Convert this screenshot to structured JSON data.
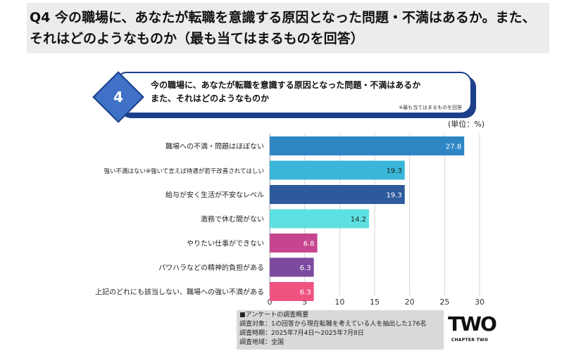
{
  "page_title": "Q4 今の職場に、あなたが転職を意識する原因となった問題・不満はあるか。また、それはどのようなものか（最も当てはまるものを回答）",
  "question_box": {
    "number": "4",
    "line1": "今の職場に、あなたが転職を意識する原因となった問題・不満はあるか",
    "line2": "また、それはどのようなものか",
    "note": "※最も当てはまるものを回答"
  },
  "unit_label": "(単位：%)",
  "chart_data": {
    "type": "bar",
    "orientation": "horizontal",
    "categories": [
      "職場への不満・問題はほぼない",
      "強い不満はない※強いて言えば待遇が若干改善されてほしい",
      "給与が安く生活が不安なレベル",
      "激務で休む間がない",
      "やりたい仕事ができない",
      "パワハラなどの精神的負担がある",
      "上記のどれにも該当しない、職場への強い不満がある"
    ],
    "values": [
      27.8,
      19.3,
      19.3,
      14.2,
      6.8,
      6.3,
      6.3
    ],
    "value_labels": [
      "27.8",
      "19.3",
      "19.3",
      "14.2",
      "6.8",
      "6.3",
      "6.3"
    ],
    "bar_colors": [
      "#2f86c4",
      "#39b6d8",
      "#2d5a9b",
      "#5ee0e2",
      "#c7458f",
      "#7d4aa0",
      "#ef5481"
    ],
    "label_colors": [
      "#ffffff",
      "#222222",
      "#ffffff",
      "#222222",
      "#ffffff",
      "#ffffff",
      "#ffffff"
    ],
    "xlim": [
      0,
      30
    ],
    "xticks": [
      "0",
      "5",
      "10",
      "15",
      "20",
      "25",
      "30"
    ],
    "grid": true,
    "xlabel": "",
    "ylabel": ""
  },
  "survey": {
    "heading": "■アンケートの調査概要",
    "target": "調査対象：1の回答から現在転職を考えている人を抽出した176名",
    "period": "調査時期：2025年7月4日～2025年7月8日",
    "area": "調査地域：全国"
  },
  "logo": {
    "text": "TWO",
    "subtitle": "CHAPTER TWO"
  }
}
